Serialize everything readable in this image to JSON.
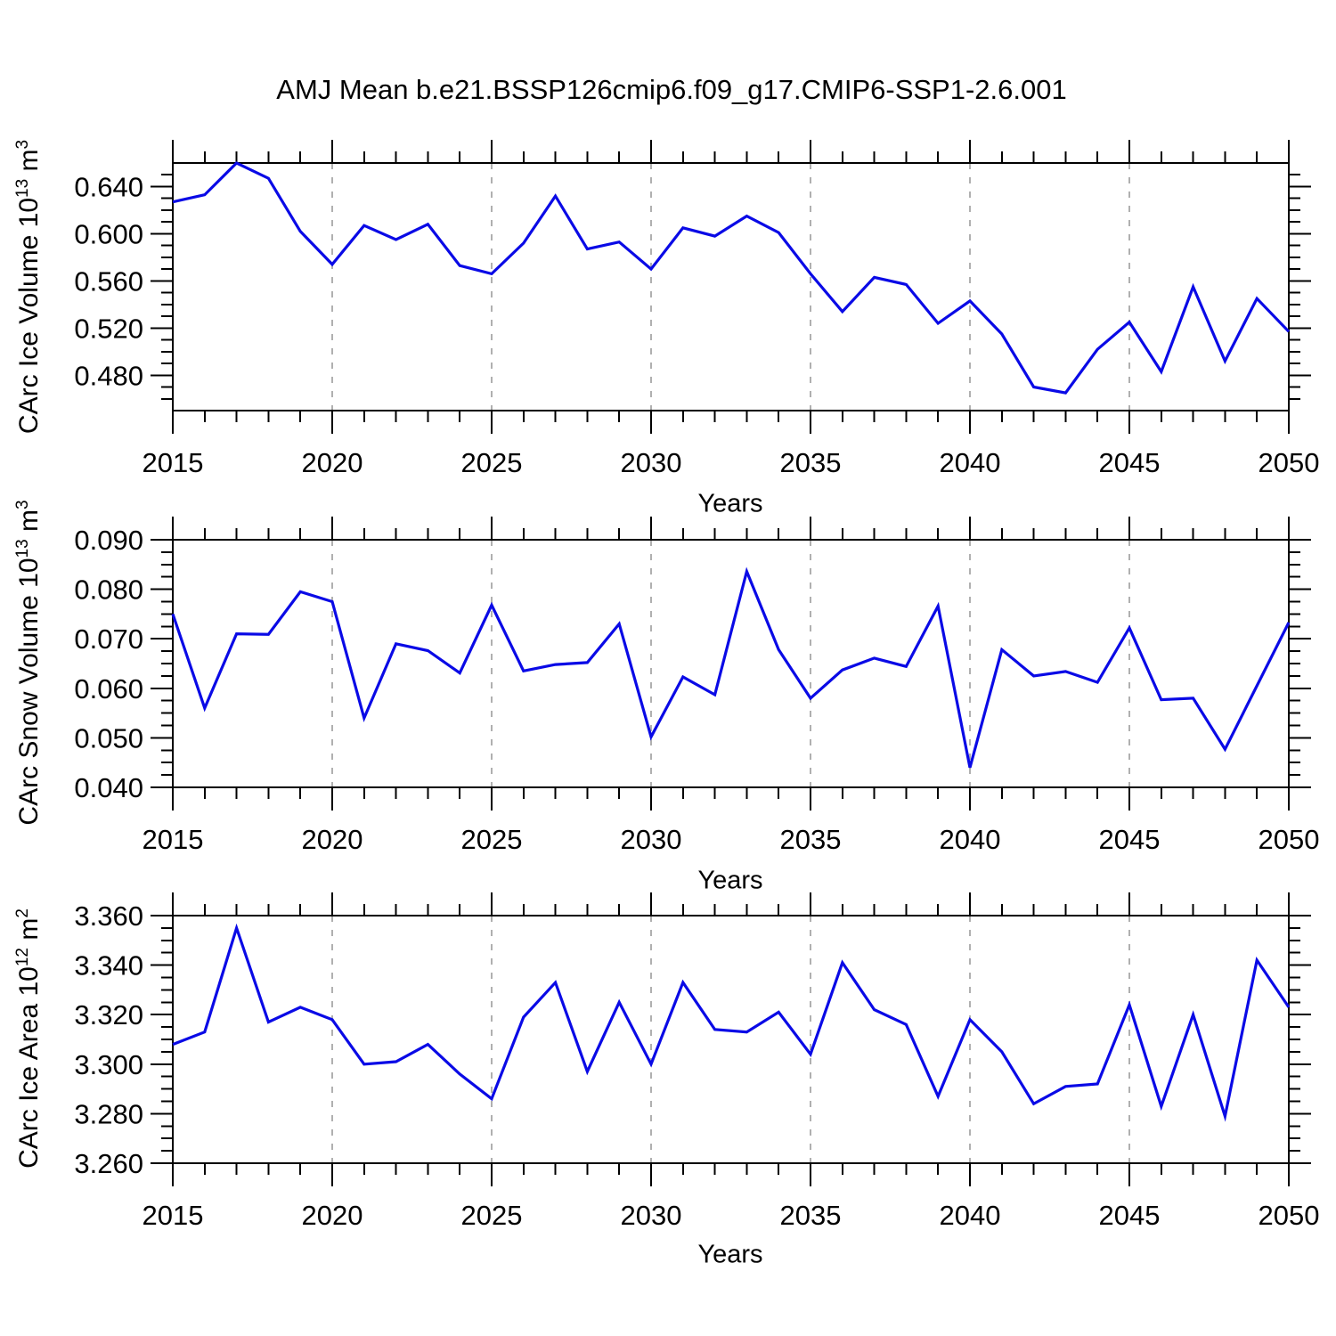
{
  "title": "AMJ Mean b.e21.BSSP126cmip6.f09_g17.CMIP6-SSP1-2.6.001",
  "colors": {
    "line": "#0a0ae6",
    "axis": "#000000",
    "grid": "#b0b0b0",
    "background": "#ffffff"
  },
  "x_axis": {
    "label": "Years",
    "start": 2015,
    "end": 2050,
    "major_tick_step": 5,
    "minor_tick_step": 1,
    "tick_labels": [
      "2015",
      "2020",
      "2025",
      "2030",
      "2035",
      "2040",
      "2045",
      "2050"
    ],
    "gridline_years": [
      2020,
      2025,
      2030,
      2035,
      2040,
      2045
    ]
  },
  "chart_data": [
    {
      "type": "line",
      "panel": "ice-volume",
      "ylabel": {
        "base": "CArc Ice Volume 10",
        "exp": "13",
        "unit": " m",
        "unit_exp": "3"
      },
      "ylabel_text": "CArc Ice Volume 10^13 m^3",
      "xlabel": "Years",
      "ylim": [
        0.45,
        0.66
      ],
      "yticks": [
        0.48,
        0.52,
        0.56,
        0.6,
        0.64
      ],
      "ytick_labels": [
        "0.480",
        "0.520",
        "0.560",
        "0.600",
        "0.640"
      ],
      "y_minor_step": 0.01,
      "x": [
        2015,
        2016,
        2017,
        2018,
        2019,
        2020,
        2021,
        2022,
        2023,
        2024,
        2025,
        2026,
        2027,
        2028,
        2029,
        2030,
        2031,
        2032,
        2033,
        2034,
        2035,
        2036,
        2037,
        2038,
        2039,
        2040,
        2041,
        2042,
        2043,
        2044,
        2045,
        2046,
        2047,
        2048,
        2049,
        2050
      ],
      "values": [
        0.627,
        0.633,
        0.66,
        0.647,
        0.602,
        0.574,
        0.607,
        0.595,
        0.608,
        0.573,
        0.566,
        0.592,
        0.632,
        0.587,
        0.593,
        0.57,
        0.605,
        0.598,
        0.615,
        0.601,
        0.566,
        0.534,
        0.563,
        0.557,
        0.524,
        0.543,
        0.515,
        0.47,
        0.465,
        0.502,
        0.525,
        0.483,
        0.555,
        0.492,
        0.545,
        0.517
      ]
    },
    {
      "type": "line",
      "panel": "snow-volume",
      "ylabel": {
        "base": "CArc Snow Volume 10",
        "exp": "13",
        "unit": " m",
        "unit_exp": "3"
      },
      "ylabel_text": "CArc Snow Volume 10^13 m^3",
      "xlabel": "Years",
      "ylim": [
        0.04,
        0.09
      ],
      "yticks": [
        0.04,
        0.05,
        0.06,
        0.07,
        0.08,
        0.09
      ],
      "ytick_labels": [
        "0.040",
        "0.050",
        "0.060",
        "0.070",
        "0.080",
        "0.090"
      ],
      "y_minor_step": 0.0025,
      "x": [
        2015,
        2016,
        2017,
        2018,
        2019,
        2020,
        2021,
        2022,
        2023,
        2024,
        2025,
        2026,
        2027,
        2028,
        2029,
        2030,
        2031,
        2032,
        2033,
        2034,
        2035,
        2036,
        2037,
        2038,
        2039,
        2040,
        2041,
        2042,
        2043,
        2044,
        2045,
        2046,
        2047,
        2048,
        2049,
        2050
      ],
      "values": [
        0.075,
        0.056,
        0.071,
        0.0709,
        0.0795,
        0.0775,
        0.054,
        0.069,
        0.0676,
        0.0631,
        0.0768,
        0.0635,
        0.0648,
        0.0652,
        0.073,
        0.0502,
        0.0623,
        0.0587,
        0.0836,
        0.0678,
        0.058,
        0.0637,
        0.0661,
        0.0644,
        0.0766,
        0.044,
        0.0678,
        0.0625,
        0.0634,
        0.0612,
        0.0722,
        0.0577,
        0.058,
        0.0477,
        0.0605,
        0.0733
      ]
    },
    {
      "type": "line",
      "panel": "ice-area",
      "ylabel": {
        "base": "CArc Ice Area 10",
        "exp": "12",
        "unit": " m",
        "unit_exp": "2"
      },
      "ylabel_text": "CArc Ice Area 10^12 m^2",
      "xlabel": "Years",
      "ylim": [
        3.26,
        3.36
      ],
      "yticks": [
        3.26,
        3.28,
        3.3,
        3.32,
        3.34,
        3.36
      ],
      "ytick_labels": [
        "3.260",
        "3.280",
        "3.300",
        "3.320",
        "3.340",
        "3.360"
      ],
      "y_minor_step": 0.005,
      "x": [
        2015,
        2016,
        2017,
        2018,
        2019,
        2020,
        2021,
        2022,
        2023,
        2024,
        2025,
        2026,
        2027,
        2028,
        2029,
        2030,
        2031,
        2032,
        2033,
        2034,
        2035,
        2036,
        2037,
        2038,
        2039,
        2040,
        2041,
        2042,
        2043,
        2044,
        2045,
        2046,
        2047,
        2048,
        2049,
        2050
      ],
      "values": [
        3.308,
        3.313,
        3.355,
        3.317,
        3.323,
        3.318,
        3.3,
        3.301,
        3.308,
        3.296,
        3.286,
        3.319,
        3.333,
        3.297,
        3.325,
        3.3,
        3.333,
        3.314,
        3.313,
        3.321,
        3.304,
        3.341,
        3.322,
        3.316,
        3.287,
        3.318,
        3.305,
        3.284,
        3.291,
        3.292,
        3.324,
        3.283,
        3.32,
        3.279,
        3.342,
        3.323
      ]
    }
  ]
}
